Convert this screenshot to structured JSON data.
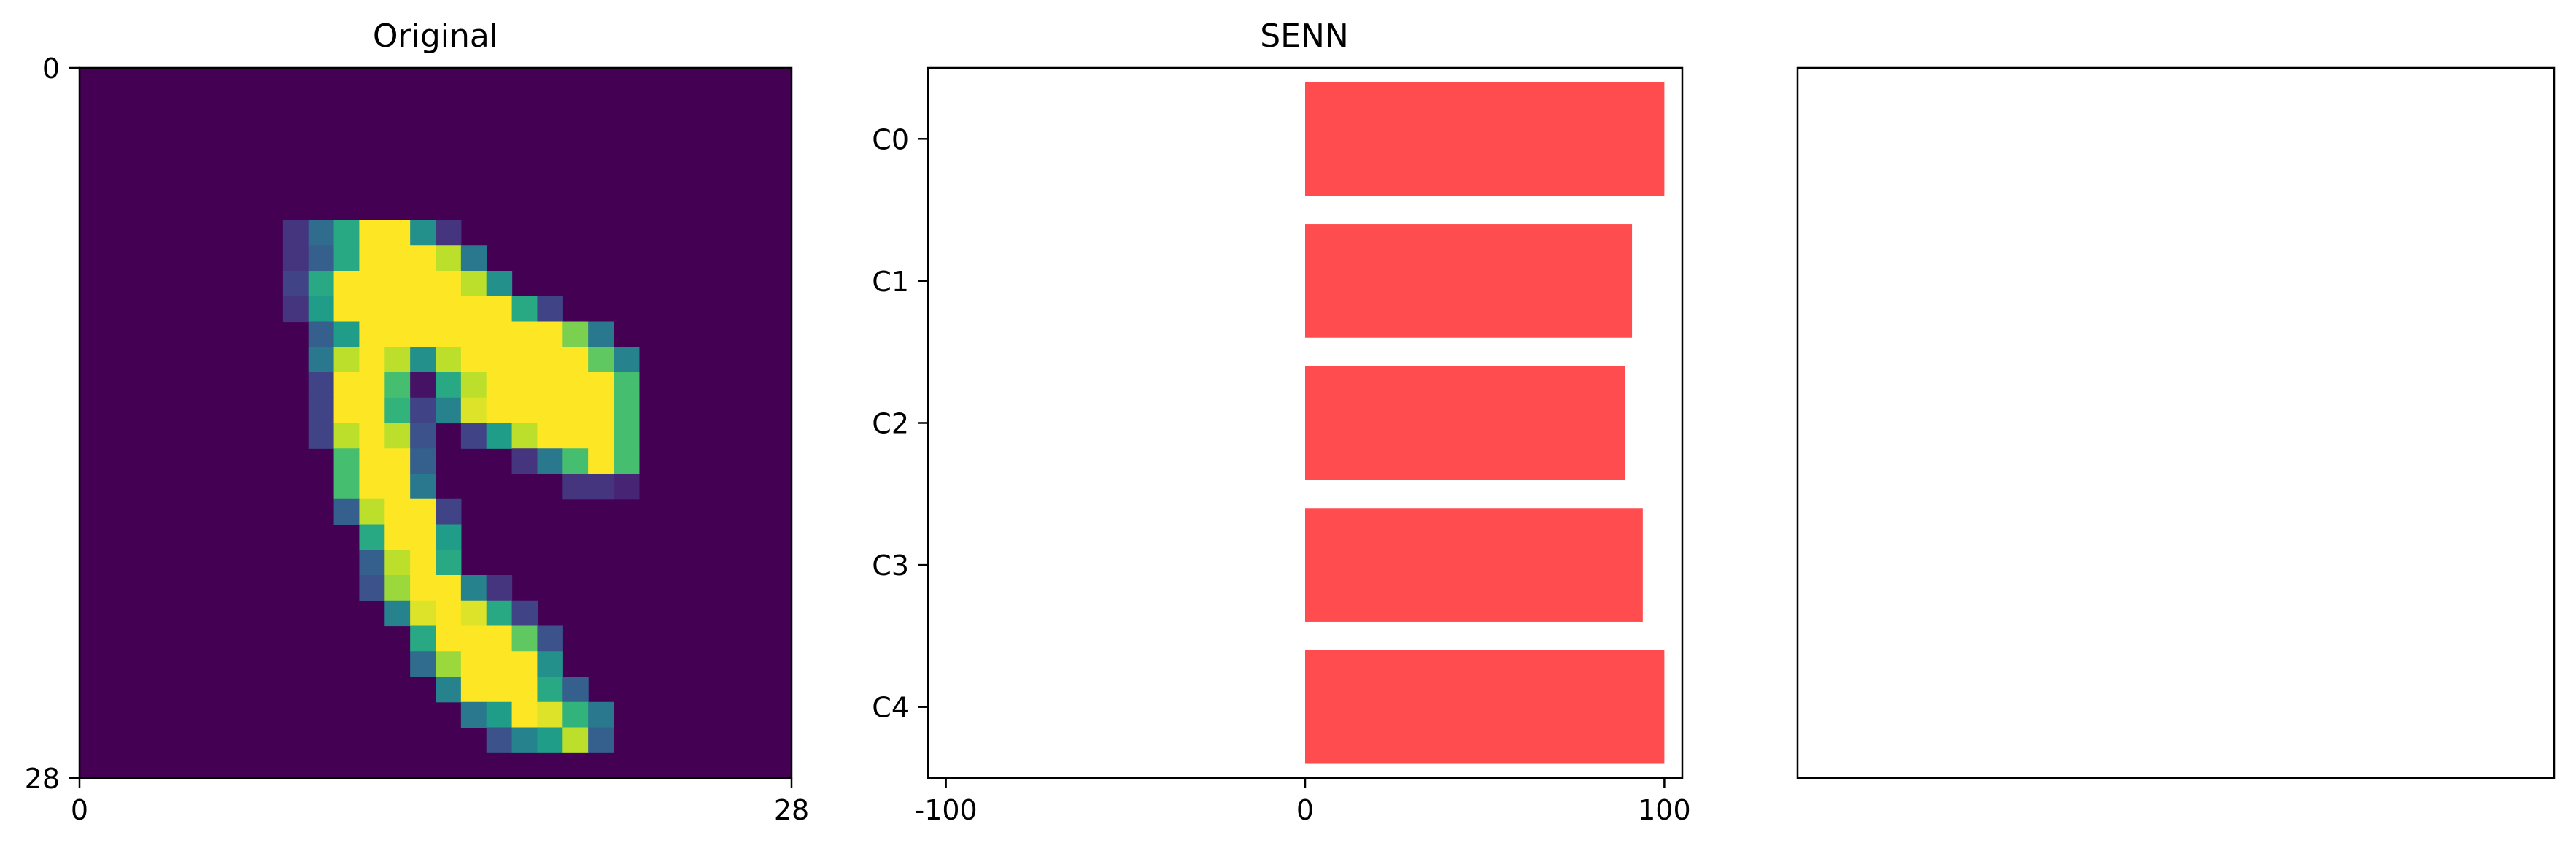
{
  "chart_data": [
    {
      "type": "heatmap",
      "title": "Original",
      "colormap": "viridis",
      "rows": 28,
      "cols": 28,
      "xlim": [
        0,
        28
      ],
      "ylim": [
        28,
        0
      ],
      "x_ticks": [
        "0",
        "28"
      ],
      "y_ticks": [
        "0",
        "28"
      ],
      "pixels": [
        [
          7,
          9,
          0.15
        ],
        [
          8,
          9,
          0.35
        ],
        [
          9,
          9,
          0.6
        ],
        [
          10,
          9,
          1.0
        ],
        [
          11,
          9,
          1.0
        ],
        [
          12,
          9,
          0.5
        ],
        [
          13,
          9,
          0.15
        ],
        [
          7,
          10,
          0.15
        ],
        [
          8,
          10,
          0.3
        ],
        [
          9,
          10,
          0.6
        ],
        [
          10,
          10,
          1.0
        ],
        [
          11,
          10,
          1.0
        ],
        [
          12,
          10,
          1.0
        ],
        [
          13,
          10,
          0.9
        ],
        [
          14,
          10,
          0.4
        ],
        [
          7,
          11,
          0.2
        ],
        [
          8,
          11,
          0.6
        ],
        [
          9,
          11,
          1.0
        ],
        [
          10,
          11,
          1.0
        ],
        [
          11,
          11,
          1.0
        ],
        [
          12,
          11,
          1.0
        ],
        [
          13,
          11,
          1.0
        ],
        [
          14,
          11,
          0.9
        ],
        [
          15,
          11,
          0.5
        ],
        [
          7,
          12,
          0.15
        ],
        [
          8,
          12,
          0.55
        ],
        [
          9,
          12,
          1.0
        ],
        [
          10,
          12,
          1.0
        ],
        [
          11,
          12,
          1.0
        ],
        [
          12,
          12,
          1.0
        ],
        [
          13,
          12,
          1.0
        ],
        [
          14,
          12,
          1.0
        ],
        [
          15,
          12,
          1.0
        ],
        [
          16,
          12,
          0.6
        ],
        [
          17,
          12,
          0.2
        ],
        [
          8,
          13,
          0.3
        ],
        [
          9,
          13,
          0.55
        ],
        [
          10,
          13,
          1.0
        ],
        [
          11,
          13,
          1.0
        ],
        [
          12,
          13,
          1.0
        ],
        [
          13,
          13,
          1.0
        ],
        [
          14,
          13,
          1.0
        ],
        [
          15,
          13,
          1.0
        ],
        [
          16,
          13,
          1.0
        ],
        [
          17,
          13,
          1.0
        ],
        [
          18,
          13,
          0.8
        ],
        [
          19,
          13,
          0.4
        ],
        [
          8,
          14,
          0.4
        ],
        [
          9,
          14,
          0.9
        ],
        [
          10,
          14,
          1.0
        ],
        [
          11,
          14,
          0.9
        ],
        [
          12,
          14,
          0.5
        ],
        [
          13,
          14,
          0.9
        ],
        [
          14,
          14,
          1.0
        ],
        [
          15,
          14,
          1.0
        ],
        [
          16,
          14,
          1.0
        ],
        [
          17,
          14,
          1.0
        ],
        [
          18,
          14,
          1.0
        ],
        [
          19,
          14,
          0.75
        ],
        [
          20,
          14,
          0.45
        ],
        [
          8,
          15,
          0.2
        ],
        [
          9,
          15,
          1.0
        ],
        [
          10,
          15,
          1.0
        ],
        [
          11,
          15,
          0.7
        ],
        [
          12,
          15,
          0.05
        ],
        [
          13,
          15,
          0.6
        ],
        [
          14,
          15,
          0.9
        ],
        [
          15,
          15,
          1.0
        ],
        [
          16,
          15,
          1.0
        ],
        [
          17,
          15,
          1.0
        ],
        [
          18,
          15,
          1.0
        ],
        [
          19,
          15,
          1.0
        ],
        [
          20,
          15,
          0.7
        ],
        [
          8,
          16,
          0.2
        ],
        [
          9,
          16,
          1.0
        ],
        [
          10,
          16,
          1.0
        ],
        [
          11,
          16,
          0.65
        ],
        [
          12,
          16,
          0.2
        ],
        [
          13,
          16,
          0.45
        ],
        [
          14,
          16,
          0.95
        ],
        [
          15,
          16,
          1.0
        ],
        [
          16,
          16,
          1.0
        ],
        [
          17,
          16,
          1.0
        ],
        [
          18,
          16,
          1.0
        ],
        [
          19,
          16,
          1.0
        ],
        [
          20,
          16,
          0.7
        ],
        [
          8,
          17,
          0.2
        ],
        [
          9,
          17,
          0.9
        ],
        [
          10,
          17,
          1.0
        ],
        [
          11,
          17,
          0.9
        ],
        [
          12,
          17,
          0.25
        ],
        [
          14,
          17,
          0.2
        ],
        [
          15,
          17,
          0.55
        ],
        [
          16,
          17,
          0.9
        ],
        [
          17,
          17,
          1.0
        ],
        [
          18,
          17,
          1.0
        ],
        [
          19,
          17,
          1.0
        ],
        [
          20,
          17,
          0.7
        ],
        [
          9,
          18,
          0.7
        ],
        [
          10,
          18,
          1.0
        ],
        [
          11,
          18,
          1.0
        ],
        [
          12,
          18,
          0.3
        ],
        [
          16,
          18,
          0.15
        ],
        [
          17,
          18,
          0.4
        ],
        [
          18,
          18,
          0.7
        ],
        [
          19,
          18,
          1.0
        ],
        [
          20,
          18,
          0.7
        ],
        [
          9,
          19,
          0.7
        ],
        [
          10,
          19,
          1.0
        ],
        [
          11,
          19,
          1.0
        ],
        [
          12,
          19,
          0.4
        ],
        [
          18,
          19,
          0.15
        ],
        [
          19,
          19,
          0.15
        ],
        [
          20,
          19,
          0.1
        ],
        [
          9,
          20,
          0.3
        ],
        [
          10,
          20,
          0.9
        ],
        [
          11,
          20,
          1.0
        ],
        [
          12,
          20,
          1.0
        ],
        [
          13,
          20,
          0.2
        ],
        [
          10,
          21,
          0.6
        ],
        [
          11,
          21,
          1.0
        ],
        [
          12,
          21,
          1.0
        ],
        [
          13,
          21,
          0.55
        ],
        [
          10,
          22,
          0.3
        ],
        [
          11,
          22,
          0.9
        ],
        [
          12,
          22,
          1.0
        ],
        [
          13,
          22,
          0.6
        ],
        [
          10,
          23,
          0.25
        ],
        [
          11,
          23,
          0.85
        ],
        [
          12,
          23,
          1.0
        ],
        [
          13,
          23,
          1.0
        ],
        [
          14,
          23,
          0.45
        ],
        [
          15,
          23,
          0.15
        ],
        [
          11,
          24,
          0.45
        ],
        [
          12,
          24,
          0.95
        ],
        [
          13,
          24,
          1.0
        ],
        [
          14,
          24,
          0.95
        ],
        [
          15,
          24,
          0.6
        ],
        [
          16,
          24,
          0.2
        ],
        [
          12,
          25,
          0.6
        ],
        [
          13,
          25,
          1.0
        ],
        [
          14,
          25,
          1.0
        ],
        [
          15,
          25,
          1.0
        ],
        [
          16,
          25,
          0.75
        ],
        [
          17,
          25,
          0.25
        ],
        [
          12,
          26,
          0.35
        ],
        [
          13,
          26,
          0.85
        ],
        [
          14,
          26,
          1.0
        ],
        [
          15,
          26,
          1.0
        ],
        [
          16,
          26,
          1.0
        ],
        [
          17,
          26,
          0.5
        ],
        [
          13,
          27,
          0.45
        ],
        [
          14,
          27,
          1.0
        ],
        [
          15,
          27,
          1.0
        ],
        [
          16,
          27,
          1.0
        ],
        [
          17,
          27,
          0.6
        ],
        [
          18,
          27,
          0.3
        ],
        [
          14,
          28,
          0.4
        ],
        [
          15,
          28,
          0.55
        ],
        [
          16,
          28,
          1.0
        ],
        [
          17,
          28,
          0.95
        ],
        [
          18,
          28,
          0.65
        ],
        [
          19,
          28,
          0.4
        ],
        [
          15,
          29,
          0.25
        ],
        [
          16,
          29,
          0.45
        ],
        [
          17,
          29,
          0.55
        ],
        [
          18,
          29,
          0.9
        ],
        [
          19,
          29,
          0.3
        ]
      ]
    },
    {
      "type": "bar",
      "orientation": "horizontal",
      "title": "SENN",
      "categories": [
        "C0",
        "C1",
        "C2",
        "C3",
        "C4"
      ],
      "values": [
        100,
        91,
        89,
        94,
        100
      ],
      "xlim": [
        -105,
        105
      ],
      "x_ticks": [
        "-100",
        "0",
        "100"
      ],
      "color": "#ff4c4f"
    },
    {
      "type": "empty",
      "title": ""
    }
  ]
}
